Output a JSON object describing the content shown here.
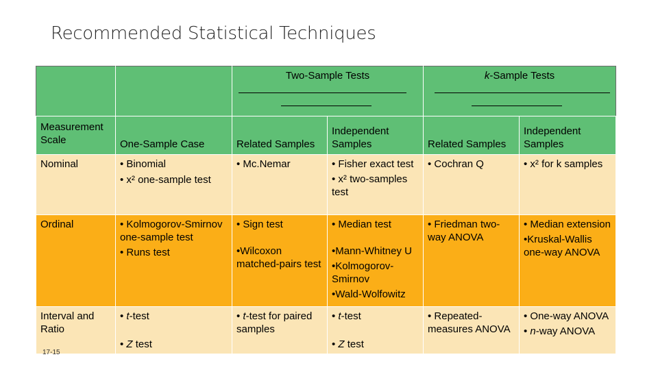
{
  "title": "Recommended Statistical Techniques",
  "groups": {
    "two_sample": "Two-Sample Tests",
    "k_sample_k": "k",
    "k_sample_rest": "-Sample Tests"
  },
  "columns": {
    "measurement_scale": "Measurement Scale",
    "one_sample": "One-Sample Case",
    "related": "Related Samples",
    "independent": "Independent Samples"
  },
  "rows": {
    "nominal": {
      "scale": "Nominal",
      "one_sample": [
        "• Binomial",
        "• x² one-sample test"
      ],
      "two_related": [
        "• Mc.Nemar"
      ],
      "two_independent": [
        "• Fisher exact test",
        "• x² two-samples test"
      ],
      "k_related": [
        "• Cochran Q"
      ],
      "k_independent": [
        "• x² for k samples"
      ]
    },
    "ordinal": {
      "scale": "Ordinal",
      "one_sample": [
        "• Kolmogorov-Smirnov one-sample test",
        "• Runs test"
      ],
      "two_related": [
        "• Sign test",
        "•Wilcoxon matched-pairs test"
      ],
      "two_independent": [
        "• Median test",
        "•Mann-Whitney U",
        "•Kolmogorov-Smirnov",
        "•Wald-Wolfowitz"
      ],
      "k_related": [
        "• Friedman two-way ANOVA"
      ],
      "k_independent": [
        "• Median extension",
        "•Kruskal-Wallis one-way ANOVA"
      ]
    },
    "interval": {
      "scale": "Interval and Ratio",
      "one_sample": [
        "• t-test",
        "• Z test"
      ],
      "two_related": [
        "• t-test for paired samples"
      ],
      "two_independent": [
        "• t-test",
        "• Z test"
      ],
      "k_related": [
        "• Repeated-measures ANOVA"
      ],
      "k_independent": [
        "• One-way ANOVA",
        "• n-way ANOVA"
      ]
    }
  },
  "footer": "17-15",
  "colors": {
    "header_green": "#5fbf75",
    "light_row": "#fbe5b6",
    "orange_row": "#fbae17"
  }
}
